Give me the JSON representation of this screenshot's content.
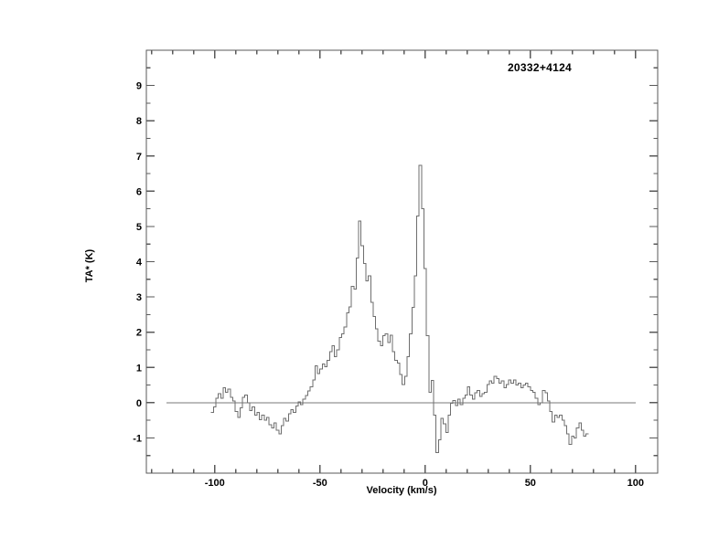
{
  "page": {
    "background": "#ffffff",
    "description": "Single spectral-line plot (radio spectrum) on white page"
  },
  "chart_data": {
    "type": "line",
    "subtype": "histogram-step-spectrum",
    "title": "20332+4124",
    "xlabel": "Velocity (km/s)",
    "ylabel": "TA* (K)",
    "xlim": [
      -132.5,
      110.5
    ],
    "ylim": [
      -2,
      10
    ],
    "x_major_ticks": [
      -100,
      -50,
      0,
      50,
      100
    ],
    "x_minor_tick_step": 10,
    "x_minor_tick_range": [
      -130,
      100
    ],
    "y_major_ticks": [
      -1,
      0,
      1,
      2,
      3,
      4,
      5,
      6,
      7,
      8,
      9
    ],
    "y_minor_tick_step": 0.5,
    "grid": false,
    "legend": false,
    "zero_line": {
      "y": 0,
      "x_start": -123,
      "x_end": 100
    },
    "colors": {
      "spectrum_line": "#6e6e6e",
      "zero_line": "#7a7a7a",
      "axis": "#5a5a5a",
      "text": "#000000"
    },
    "peaks": [
      {
        "velocity": -31,
        "ta": 5.15
      },
      {
        "velocity": -2.3,
        "ta": 6.73
      }
    ],
    "series": [
      {
        "name": "TA* spectrum",
        "v_start": -101.2,
        "dv": 1.15,
        "values": [
          -0.28,
          -0.12,
          0.12,
          0.25,
          0.13,
          0.42,
          0.3,
          0.38,
          0.15,
          0.05,
          -0.25,
          -0.42,
          -0.15,
          0.15,
          0.22,
          0.0,
          -0.22,
          -0.12,
          -0.35,
          -0.28,
          -0.48,
          -0.35,
          -0.5,
          -0.42,
          -0.62,
          -0.72,
          -0.58,
          -0.78,
          -0.88,
          -0.65,
          -0.45,
          -0.52,
          -0.32,
          -0.2,
          -0.28,
          -0.1,
          0.02,
          -0.06,
          0.1,
          0.2,
          0.33,
          0.45,
          0.65,
          1.05,
          0.82,
          0.95,
          1.1,
          1.02,
          1.2,
          1.45,
          1.62,
          1.3,
          1.5,
          1.85,
          1.95,
          2.15,
          2.55,
          2.72,
          3.3,
          3.22,
          4.1,
          5.15,
          4.45,
          3.95,
          3.45,
          3.6,
          2.85,
          2.45,
          2.1,
          1.75,
          1.62,
          1.9,
          1.95,
          1.7,
          1.92,
          1.45,
          1.2,
          1.12,
          0.8,
          0.52,
          0.75,
          1.3,
          1.95,
          2.7,
          3.6,
          5.3,
          6.73,
          5.5,
          3.8,
          1.9,
          0.3,
          0.63,
          -0.35,
          -1.42,
          -1.05,
          -0.45,
          -0.6,
          -0.85,
          -0.35,
          -0.02,
          0.06,
          -0.08,
          0.1,
          -0.05,
          0.12,
          0.22,
          0.45,
          0.22,
          0.1,
          0.28,
          0.35,
          0.18,
          0.25,
          0.3,
          0.52,
          0.62,
          0.55,
          0.75,
          0.68,
          0.55,
          0.62,
          0.42,
          0.52,
          0.65,
          0.55,
          0.65,
          0.5,
          0.55,
          0.42,
          0.5,
          0.55,
          0.45,
          0.35,
          0.3,
          0.12,
          -0.05,
          0.0,
          0.35,
          0.28,
          0.05,
          -0.25,
          -0.55,
          -0.35,
          -0.42,
          -0.35,
          -0.5,
          -0.65,
          -0.88,
          -1.18,
          -0.95,
          -1.0,
          -0.72,
          -0.58,
          -0.78,
          -0.95,
          -0.88
        ]
      }
    ]
  }
}
